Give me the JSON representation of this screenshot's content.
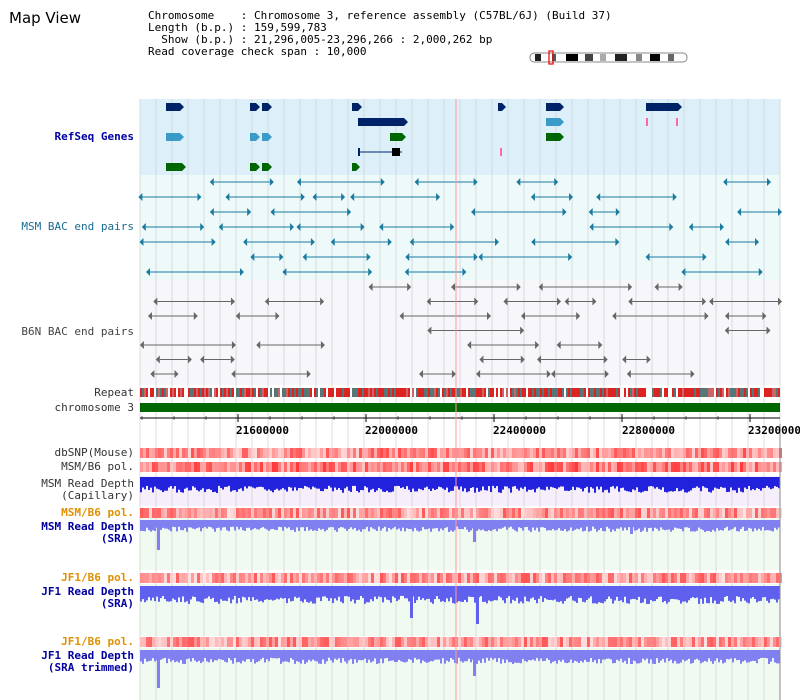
{
  "title": "Map View",
  "info": {
    "chromosome": "Chromosome    : Chromosome 3, reference assembly (C57BL/6J) (Build 37)",
    "length": "Length (b.p.) : 159,599,783",
    "show": "  Show (b.p.) : 21,296,005-23,296,266 : 2,000,262 bp",
    "coverage": "Read coverage check span : 10,000"
  },
  "tracks": {
    "refseq": "RefSeq Genes",
    "msm_bac": "MSM BAC end pairs",
    "b6n_bac": "B6N BAC end pairs",
    "repeat": "Repeat",
    "chromosome": "chromosome 3",
    "dbsnp": "dbSNP(Mouse)",
    "msm_b6_pol_1": "MSM/B6 pol.",
    "msm_depth_cap_1": "MSM Read Depth",
    "msm_depth_cap_2": "(Capillary)",
    "msm_b6_pol_2": "MSM/B6 pol.",
    "msm_depth_sra_1": "MSM Read Depth",
    "msm_depth_sra_2": "(SRA)",
    "jf1_pol_1": "JF1/B6 pol.",
    "jf1_depth_sra_1": "JF1 Read Depth",
    "jf1_depth_sra_2": "(SRA)",
    "jf1_pol_2": "JF1/B6 pol.",
    "jf1_depth_trim_1": "JF1 Read Depth",
    "jf1_depth_trim_2": "(SRA trimmed)"
  },
  "axis": {
    "ticks": [
      "21600000",
      "22000000",
      "22400000",
      "22800000",
      "23200000"
    ]
  },
  "colors": {
    "refseq_bg": "#ddf0fa",
    "msm_bg": "#eefafa",
    "b6n_bg": "#f6f6fb",
    "gene_navy": "#002266",
    "gene_teal": "#3a9ac8",
    "gene_green": "#006600",
    "msm_pair": "#1a7aa0",
    "b6n_pair": "#666666",
    "chromosome_bar": "#006600",
    "depth_capillary": "#2222dd",
    "depth_sra": "#8080f0",
    "pol_red": "#ff3030",
    "grid_line": "#c8c8c8",
    "highlight_line": "#ff9999"
  }
}
